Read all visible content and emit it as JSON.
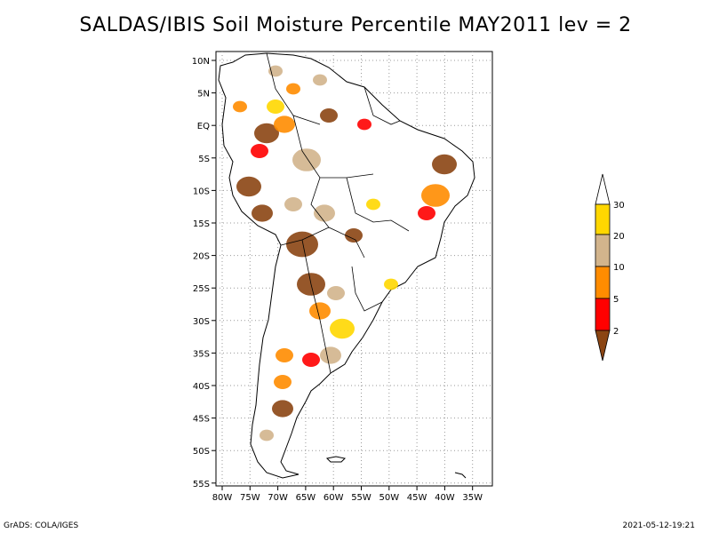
{
  "title": "SALDAS/IBIS Soil Moisture Percentile MAY2011 lev = 2",
  "lat_labels": [
    "10N",
    "5N",
    "EQ",
    "5S",
    "10S",
    "15S",
    "20S",
    "25S",
    "30S",
    "35S",
    "40S",
    "45S",
    "50S",
    "55S"
  ],
  "lon_labels": [
    "80W",
    "75W",
    "70W",
    "65W",
    "60W",
    "55W",
    "50W",
    "45W",
    "40W",
    "35W"
  ],
  "legend": {
    "thresholds": [
      "30",
      "20",
      "10",
      "5",
      "2"
    ],
    "colors": {
      "above_30": "#ffffff",
      "20_30": "#ffd700",
      "10_20": "#d2b48c",
      "5_10": "#ff8c00",
      "2_5": "#ff0000",
      "below_2": "#8b4513"
    }
  },
  "footer": {
    "left": "GrADS: COLA/IGES",
    "right": "2021-05-12-19:21"
  }
}
